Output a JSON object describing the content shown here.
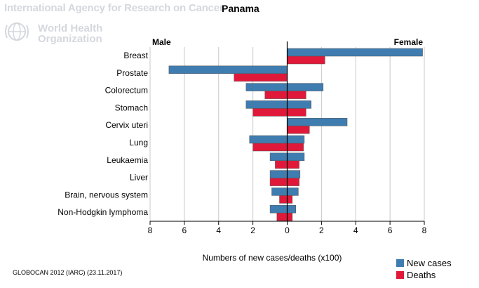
{
  "header": {
    "agency": "International Agency for Research on Cancer",
    "who_line1": "World Health",
    "who_line2": "Organization"
  },
  "chart_data": {
    "type": "bar",
    "title": "Panama",
    "left_label": "Male",
    "right_label": "Female",
    "xlabel": "Numbers of new cases/deaths (x100)",
    "xlim": [
      -8,
      8
    ],
    "x_ticks": [
      -8,
      -6,
      -4,
      -2,
      0,
      2,
      4,
      6,
      8
    ],
    "x_tick_labels": [
      "8",
      "6",
      "4",
      "2",
      "0",
      "2",
      "4",
      "6",
      "8"
    ],
    "grid": true,
    "legend_position": "bottom-right",
    "categories": [
      "Breast",
      "Prostate",
      "Colorectum",
      "Stomach",
      "Cervix uteri",
      "Lung",
      "Leukaemia",
      "Liver",
      "Brain, nervous system",
      "Non-Hodgkin lymphoma"
    ],
    "series": [
      {
        "name": "New cases",
        "color": "#3f7cb0",
        "male": [
          0,
          6.9,
          2.4,
          2.4,
          0,
          2.2,
          1.0,
          1.0,
          0.9,
          1.0
        ],
        "female": [
          7.9,
          0,
          2.1,
          1.4,
          3.5,
          1.0,
          1.0,
          0.75,
          0.65,
          0.5
        ]
      },
      {
        "name": "Deaths",
        "color": "#e0193a",
        "male": [
          0,
          3.1,
          1.3,
          2.0,
          0,
          2.0,
          0.7,
          1.0,
          0.45,
          0.6
        ],
        "female": [
          2.2,
          0,
          1.1,
          1.1,
          1.3,
          0.95,
          0.7,
          0.7,
          0.3,
          0.3
        ]
      }
    ]
  },
  "footer": {
    "source": "GLOBOCAN 2012 (IARC) (23.11.2017)"
  }
}
